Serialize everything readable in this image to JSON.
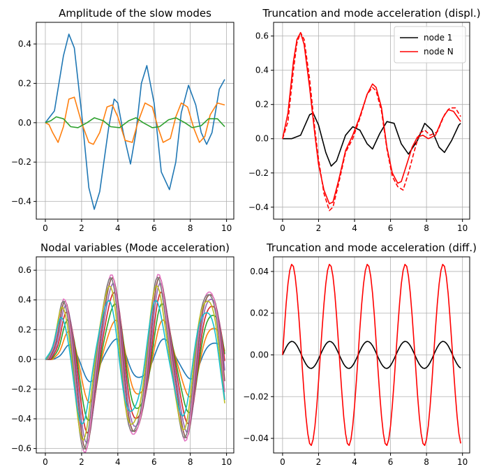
{
  "chart_data": [
    {
      "type": "line",
      "title": "Amplitude of the slow modes",
      "xlabel": "",
      "ylabel": "",
      "xlim": [
        -0.5,
        10.4
      ],
      "ylim": [
        -0.49,
        0.51
      ],
      "xticks": [
        0,
        2,
        4,
        6,
        8,
        10
      ],
      "yticks": [
        -0.4,
        -0.2,
        0.0,
        0.2,
        0.4
      ],
      "grid": true,
      "series": [
        {
          "color": "#1f77b4",
          "x": [
            0,
            0.5,
            1,
            1.3,
            1.6,
            2,
            2.4,
            2.7,
            3,
            3.5,
            3.8,
            4,
            4.3,
            4.7,
            5,
            5.3,
            5.6,
            6,
            6.4,
            6.85,
            7.2,
            7.5,
            7.9,
            8.3,
            8.6,
            8.9,
            9.2,
            9.6,
            9.9
          ],
          "y": [
            0,
            0.06,
            0.34,
            0.45,
            0.38,
            0.05,
            -0.33,
            -0.44,
            -0.35,
            -0.02,
            0.12,
            0.1,
            -0.05,
            -0.21,
            -0.05,
            0.2,
            0.29,
            0.1,
            -0.25,
            -0.34,
            -0.2,
            0.05,
            0.19,
            0.09,
            -0.05,
            -0.11,
            -0.05,
            0.17,
            0.22
          ]
        },
        {
          "color": "#ff7f0e",
          "x": [
            0,
            0.2,
            0.4,
            0.7,
            1,
            1.3,
            1.6,
            2,
            2.4,
            2.65,
            3,
            3.4,
            3.7,
            4,
            4.4,
            4.8,
            5.1,
            5.5,
            5.9,
            6.2,
            6.5,
            6.9,
            7.2,
            7.5,
            7.85,
            8.2,
            8.5,
            8.8,
            9.1,
            9.5,
            9.9
          ],
          "y": [
            0,
            -0.01,
            -0.05,
            -0.1,
            -0.02,
            0.12,
            0.13,
            0.0,
            -0.1,
            -0.11,
            -0.05,
            0.08,
            0.09,
            0.03,
            -0.09,
            -0.1,
            0.0,
            0.1,
            0.08,
            -0.02,
            -0.1,
            -0.08,
            0.03,
            0.1,
            0.08,
            -0.03,
            -0.1,
            -0.07,
            0.04,
            0.1,
            0.09
          ]
        },
        {
          "color": "#2ca02c",
          "x": [
            0,
            0.3,
            0.6,
            1,
            1.4,
            1.8,
            2.3,
            2.7,
            3.2,
            3.6,
            4.1,
            4.6,
            5.0,
            5.4,
            5.9,
            6.3,
            6.8,
            7.2,
            7.7,
            8.1,
            8.6,
            9.0,
            9.5,
            9.9
          ],
          "y": [
            0,
            0.01,
            0.03,
            0.02,
            -0.02,
            -0.025,
            0.0,
            0.025,
            0.01,
            -0.02,
            -0.025,
            0.01,
            0.025,
            0.0,
            -0.025,
            -0.02,
            0.015,
            0.025,
            0.0,
            -0.025,
            -0.015,
            0.02,
            0.02,
            -0.02
          ]
        }
      ]
    },
    {
      "type": "line",
      "title": "Truncation and mode acceleration (displ.)",
      "xlabel": "",
      "ylabel": "",
      "xlim": [
        -0.5,
        10.4
      ],
      "ylim": [
        -0.47,
        0.68
      ],
      "xticks": [
        0,
        2,
        4,
        6,
        8,
        10
      ],
      "yticks": [
        -0.4,
        -0.2,
        0.0,
        0.2,
        0.4,
        0.6
      ],
      "grid": true,
      "legend": "top-right",
      "series": [
        {
          "name": "node 1",
          "color": "#000000",
          "style": "solid",
          "x": [
            0,
            0.5,
            1,
            1.5,
            1.7,
            2,
            2.4,
            2.7,
            3,
            3.5,
            3.9,
            4.3,
            4.7,
            5,
            5.4,
            5.8,
            6.2,
            6.6,
            7,
            7.5,
            7.9,
            8.3,
            8.7,
            9.0,
            9.4,
            9.8,
            9.9
          ],
          "y": [
            0,
            0,
            0.02,
            0.14,
            0.15,
            0.08,
            -0.08,
            -0.16,
            -0.13,
            0.02,
            0.07,
            0.05,
            -0.03,
            -0.06,
            0.03,
            0.1,
            0.09,
            -0.03,
            -0.09,
            -0.01,
            0.09,
            0.05,
            -0.05,
            -0.08,
            -0.01,
            0.08,
            0.09
          ]
        },
        {
          "name": "node N",
          "color": "#ff0000",
          "style": "solid",
          "x": [
            0,
            0.3,
            0.6,
            0.8,
            1,
            1.2,
            1.5,
            1.8,
            2,
            2.3,
            2.6,
            2.8,
            3.1,
            3.5,
            3.9,
            4.3,
            4.7,
            5,
            5.2,
            5.5,
            5.8,
            6.1,
            6.4,
            6.6,
            6.9,
            7.2,
            7.5,
            7.8,
            8.1,
            8.5,
            8.9,
            9.2,
            9.5,
            9.9
          ],
          "y": [
            0,
            0.15,
            0.45,
            0.58,
            0.62,
            0.55,
            0.3,
            0.02,
            -0.15,
            -0.3,
            -0.38,
            -0.37,
            -0.25,
            -0.07,
            0.02,
            0.13,
            0.26,
            0.32,
            0.3,
            0.18,
            -0.05,
            -0.2,
            -0.26,
            -0.25,
            -0.15,
            -0.05,
            0.01,
            0.02,
            0.0,
            0.02,
            0.12,
            0.17,
            0.16,
            0.1
          ]
        },
        {
          "name": "",
          "color": "#ff0000",
          "style": "dashed",
          "x": [
            0,
            0.3,
            0.6,
            0.8,
            1,
            1.2,
            1.5,
            1.8,
            2,
            2.3,
            2.6,
            2.8,
            3.1,
            3.5,
            3.9,
            4.3,
            4.7,
            5,
            5.2,
            5.5,
            5.8,
            6.1,
            6.4,
            6.7,
            7.0,
            7.3,
            7.6,
            7.9,
            8.2,
            8.6,
            9.0,
            9.3,
            9.6,
            9.9
          ],
          "y": [
            0,
            0.1,
            0.4,
            0.56,
            0.62,
            0.58,
            0.35,
            0.05,
            -0.12,
            -0.32,
            -0.42,
            -0.4,
            -0.27,
            -0.08,
            0.0,
            0.12,
            0.26,
            0.3,
            0.28,
            0.16,
            -0.06,
            -0.22,
            -0.28,
            -0.3,
            -0.2,
            -0.08,
            0.03,
            0.05,
            0.02,
            0.04,
            0.14,
            0.18,
            0.18,
            0.13
          ]
        }
      ]
    },
    {
      "type": "line",
      "title": "Nodal variables (Mode acceleration)",
      "xlabel": "",
      "ylabel": "",
      "xlim": [
        -0.5,
        10.4
      ],
      "ylim": [
        -0.63,
        0.69
      ],
      "xticks": [
        0,
        2,
        4,
        6,
        8,
        10
      ],
      "yticks": [
        -0.6,
        -0.4,
        -0.2,
        0.0,
        0.2,
        0.4,
        0.6
      ],
      "grid": true,
      "series": [
        {
          "color": "#1f77b4",
          "amp": 0.25
        },
        {
          "color": "#ff7f0e",
          "amp": 0.48
        },
        {
          "color": "#2ca02c",
          "amp": 0.68
        },
        {
          "color": "#d62728",
          "amp": 0.82
        },
        {
          "color": "#9467bd",
          "amp": 0.93
        },
        {
          "color": "#8c564b",
          "amp": 1.0
        },
        {
          "color": "#e377c2",
          "amp": 1.04
        },
        {
          "color": "#7f7f7f",
          "amp": 1.0
        },
        {
          "color": "#bcbd22",
          "amp": 0.9
        },
        {
          "color": "#17becf",
          "amp": 0.72
        }
      ]
    },
    {
      "type": "line",
      "title": "Truncation and mode acceleration (diff.)",
      "xlabel": "",
      "ylabel": "",
      "xlim": [
        -0.5,
        10.4
      ],
      "ylim": [
        -0.047,
        0.047
      ],
      "xticks": [
        0,
        2,
        4,
        6,
        8,
        10
      ],
      "yticks": [
        -0.04,
        -0.02,
        0.0,
        0.02,
        0.04
      ],
      "grid": true,
      "series": [
        {
          "color": "#000000",
          "amplitude": 0.0065,
          "period": 2.1
        },
        {
          "color": "#ff0000",
          "amplitude": 0.0435,
          "period": 2.1
        }
      ]
    }
  ]
}
